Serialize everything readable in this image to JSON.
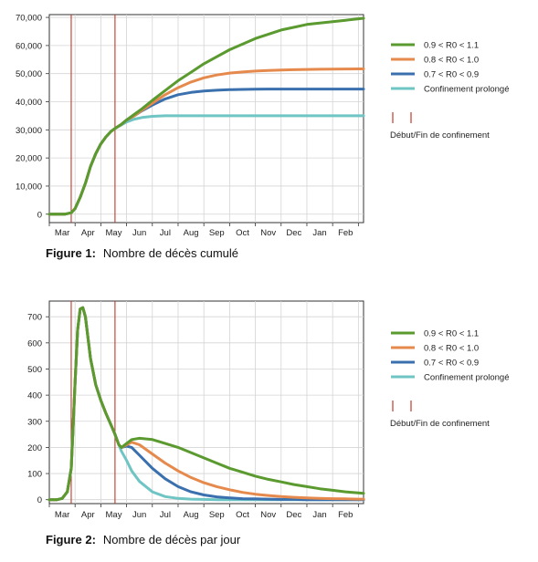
{
  "legend": {
    "series_labels": [
      "0.9 < R0 < 1.1",
      "0.8 < R0 < 1.0",
      "0.7 < R0 < 0.9",
      "Confinement prolongé"
    ],
    "confinement_label": "Début/Fin de confinement"
  },
  "colors": {
    "green": "#5a9a2f",
    "orange": "#e58a4c",
    "blue": "#3a70ad",
    "teal": "#6fc4c4",
    "vline": "#c0392b",
    "grid": "#d4d4d4"
  },
  "figure1": {
    "label": "Figure 1:",
    "caption": "Nombre de décès cumulé"
  },
  "figure2": {
    "label": "Figure 2:",
    "caption": "Nombre de décès par jour"
  },
  "chart_data": [
    {
      "type": "line",
      "x_tick_labels": [
        "Mar",
        "Apr",
        "May",
        "Jun",
        "Jul",
        "Aug",
        "Sep",
        "Oct",
        "Nov",
        "Dec",
        "Jan",
        "Feb"
      ],
      "y_tick_labels": [
        "0",
        "10,000",
        "20,000",
        "30,000",
        "40,000",
        "50,000",
        "60,000",
        "70,000"
      ],
      "ylim": [
        -3000,
        71000
      ],
      "xlim": [
        0,
        12.2
      ],
      "grid": true,
      "legend_position": "right",
      "confinement_lines_month_index": [
        0.85,
        2.55
      ],
      "x_month_index": [
        0,
        0.3,
        0.6,
        0.85,
        1.0,
        1.2,
        1.4,
        1.6,
        1.8,
        2.0,
        2.2,
        2.4,
        2.55,
        2.8,
        3.0,
        3.3,
        3.6,
        4.0,
        4.5,
        5.0,
        5.5,
        6.0,
        6.5,
        7.0,
        7.5,
        8.0,
        8.5,
        9.0,
        9.5,
        10.0,
        10.5,
        11.0,
        11.5,
        12.0,
        12.2
      ],
      "series": [
        {
          "name": "0.9 < R0 < 1.1",
          "color_key": "green",
          "values": [
            0,
            0,
            0,
            500,
            2000,
            6000,
            11000,
            17000,
            21500,
            25000,
            27500,
            29500,
            30500,
            32000,
            33500,
            35500,
            37500,
            40500,
            44000,
            47500,
            50500,
            53500,
            56000,
            58500,
            60500,
            62500,
            64000,
            65500,
            66500,
            67500,
            68000,
            68500,
            69000,
            69500,
            69700
          ]
        },
        {
          "name": "0.8 < R0 < 1.0",
          "color_key": "orange",
          "values": [
            0,
            0,
            0,
            500,
            2000,
            6000,
            11000,
            17000,
            21500,
            25000,
            27500,
            29500,
            30500,
            32000,
            33500,
            35000,
            37000,
            39500,
            42500,
            45000,
            47000,
            48500,
            49500,
            50200,
            50600,
            50900,
            51100,
            51300,
            51400,
            51500,
            51550,
            51600,
            51650,
            51700,
            51700
          ]
        },
        {
          "name": "0.7 < R0 < 0.9",
          "color_key": "blue",
          "values": [
            0,
            0,
            0,
            500,
            2000,
            6000,
            11000,
            17000,
            21500,
            25000,
            27500,
            29500,
            30500,
            32000,
            33500,
            35000,
            36800,
            38800,
            41000,
            42500,
            43300,
            43800,
            44100,
            44300,
            44400,
            44450,
            44500,
            44500,
            44500,
            44500,
            44500,
            44500,
            44500,
            44500,
            44500
          ]
        },
        {
          "name": "Confinement prolongé",
          "color_key": "teal",
          "values": [
            0,
            0,
            0,
            500,
            2000,
            6000,
            11000,
            17000,
            21500,
            25000,
            27500,
            29500,
            30500,
            31800,
            32800,
            33800,
            34400,
            34800,
            35000,
            35000,
            35000,
            35000,
            35000,
            35000,
            35000,
            35000,
            35000,
            35000,
            35000,
            35000,
            35000,
            35000,
            35000,
            35000,
            35000
          ]
        }
      ]
    },
    {
      "type": "line",
      "x_tick_labels": [
        "Mar",
        "Apr",
        "May",
        "Jun",
        "Jul",
        "Aug",
        "Sep",
        "Oct",
        "Nov",
        "Dec",
        "Jan",
        "Feb"
      ],
      "y_tick_labels": [
        "0",
        "100",
        "200",
        "300",
        "400",
        "500",
        "600",
        "700"
      ],
      "ylim": [
        -15,
        760
      ],
      "xlim": [
        0,
        12.2
      ],
      "grid": true,
      "legend_position": "right",
      "confinement_lines_month_index": [
        0.85,
        2.55
      ],
      "x_month_index": [
        0,
        0.3,
        0.5,
        0.7,
        0.85,
        1.0,
        1.1,
        1.2,
        1.3,
        1.4,
        1.5,
        1.6,
        1.8,
        2.0,
        2.2,
        2.4,
        2.55,
        2.7,
        2.8,
        3.0,
        3.2,
        3.5,
        4.0,
        4.5,
        5.0,
        5.5,
        6.0,
        6.5,
        7.0,
        7.5,
        8.0,
        8.5,
        9.0,
        9.5,
        10.0,
        10.5,
        11.0,
        11.5,
        12.0,
        12.2
      ],
      "series": [
        {
          "name": "0.9 < R0 < 1.1",
          "color_key": "green",
          "values": [
            0,
            0,
            5,
            30,
            120,
            450,
            650,
            730,
            735,
            700,
            620,
            540,
            440,
            380,
            330,
            285,
            250,
            210,
            200,
            215,
            230,
            235,
            230,
            215,
            200,
            180,
            160,
            140,
            120,
            105,
            90,
            78,
            68,
            58,
            50,
            42,
            36,
            30,
            26,
            24
          ]
        },
        {
          "name": "0.8 < R0 < 1.0",
          "color_key": "orange",
          "values": [
            0,
            0,
            5,
            30,
            120,
            450,
            650,
            730,
            735,
            700,
            620,
            540,
            440,
            380,
            330,
            285,
            250,
            210,
            200,
            210,
            220,
            210,
            175,
            140,
            110,
            85,
            65,
            50,
            38,
            28,
            21,
            16,
            12,
            9,
            7,
            5,
            4,
            3,
            2,
            2
          ]
        },
        {
          "name": "0.7 < R0 < 0.9",
          "color_key": "blue",
          "values": [
            0,
            0,
            5,
            30,
            120,
            450,
            650,
            730,
            735,
            700,
            620,
            540,
            440,
            380,
            330,
            285,
            250,
            210,
            200,
            205,
            200,
            170,
            120,
            80,
            50,
            30,
            18,
            11,
            7,
            4,
            3,
            2,
            1,
            1,
            0,
            0,
            0,
            0,
            0,
            0
          ]
        },
        {
          "name": "Confinement prolongé",
          "color_key": "teal",
          "values": [
            0,
            0,
            5,
            30,
            120,
            450,
            650,
            730,
            735,
            700,
            620,
            540,
            440,
            380,
            330,
            285,
            250,
            210,
            185,
            150,
            110,
            70,
            30,
            12,
            5,
            2,
            1,
            0,
            0,
            0,
            0,
            0,
            0,
            0,
            0,
            0,
            0,
            0,
            0,
            0
          ]
        }
      ]
    }
  ]
}
